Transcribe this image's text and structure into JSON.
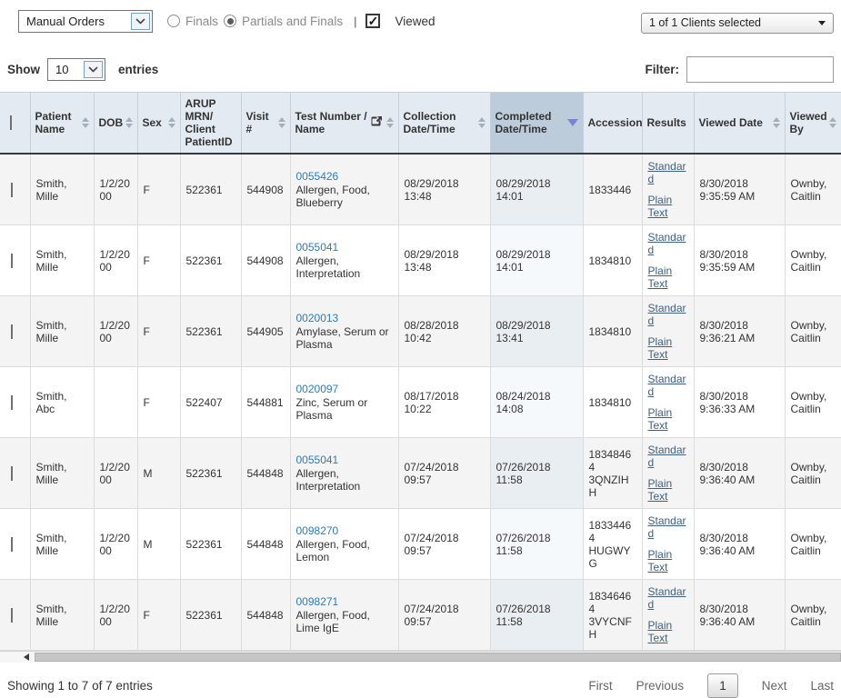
{
  "toolbar": {
    "order_type_value": "Manual Orders",
    "radio_finals_label": "Finals",
    "radio_partials_label": "Partials and Finals",
    "separator": "|",
    "viewed_checkbox_checked": "✓",
    "viewed_label": "Viewed",
    "clients_dropdown_value": "1 of 1 Clients selected"
  },
  "controls": {
    "show_label": "Show",
    "entries_per_page": "10",
    "entries_label": "entries",
    "filter_label": "Filter:",
    "filter_value": ""
  },
  "table": {
    "columns": [
      {
        "key": "cb",
        "label": "",
        "sortable": false
      },
      {
        "key": "patient",
        "label": "Patient Name",
        "sortable": true
      },
      {
        "key": "dob",
        "label": "DOB",
        "sortable": true
      },
      {
        "key": "sex",
        "label": "Sex",
        "sortable": true
      },
      {
        "key": "mrn",
        "label": "ARUP MRN/ Client PatientID",
        "sortable": false
      },
      {
        "key": "visit",
        "label": "Visit #",
        "sortable": true
      },
      {
        "key": "test",
        "label": "Test Number / Name",
        "sortable": true,
        "icon": "external-link-icon"
      },
      {
        "key": "collection",
        "label": "Collection Date/Time",
        "sortable": true
      },
      {
        "key": "completed",
        "label": "Completed Date/Time",
        "sortable": true,
        "sorted": "desc"
      },
      {
        "key": "accession",
        "label": "Accession",
        "sortable": false
      },
      {
        "key": "results",
        "label": "Results",
        "sortable": false
      },
      {
        "key": "viewed_date",
        "label": "Viewed Date",
        "sortable": true
      },
      {
        "key": "viewed_by",
        "label": "Viewed By",
        "sortable": true
      }
    ],
    "results_links": [
      "Standard",
      "Plain Text"
    ],
    "rows": [
      {
        "patient": "Smith, Mille",
        "dob": "1/2/2000",
        "sex": "F",
        "mrn": "522361",
        "visit": "544908",
        "test_number": "0055426",
        "test_name": "Allergen, Food, Blueberry",
        "collection": "08/29/2018 13:48",
        "completed": "08/29/2018 14:01",
        "accession": "1833446",
        "viewed_date": "8/30/2018 9:35:59 AM",
        "viewed_by": "Ownby, Caitlin"
      },
      {
        "patient": "Smith, Mille",
        "dob": "1/2/2000",
        "sex": "F",
        "mrn": "522361",
        "visit": "544908",
        "test_number": "0055041",
        "test_name": "Allergen, Interpretation",
        "collection": "08/29/2018 13:48",
        "completed": "08/29/2018 14:01",
        "accession": "1834810",
        "viewed_date": "8/30/2018 9:35:59 AM",
        "viewed_by": "Ownby, Caitlin"
      },
      {
        "patient": "Smith, Mille",
        "dob": "1/2/2000",
        "sex": "F",
        "mrn": "522361",
        "visit": "544905",
        "test_number": "0020013",
        "test_name": "Amylase, Serum or Plasma",
        "collection": "08/28/2018 10:42",
        "completed": "08/29/2018 13:41",
        "accession": "1834810",
        "viewed_date": "8/30/2018 9:36:21 AM",
        "viewed_by": "Ownby, Caitlin"
      },
      {
        "patient": "Smith, Abc",
        "dob": "",
        "sex": "F",
        "mrn": "522407",
        "visit": "544881",
        "test_number": "0020097",
        "test_name": "Zinc, Serum or Plasma",
        "collection": "08/17/2018 10:22",
        "completed": "08/24/2018 14:08",
        "accession": "1834810",
        "viewed_date": "8/30/2018 9:36:33 AM",
        "viewed_by": "Ownby, Caitlin"
      },
      {
        "patient": "Smith, Mille",
        "dob": "1/2/2000",
        "sex": "M",
        "mrn": "522361",
        "visit": "544848",
        "test_number": "0055041",
        "test_name": "Allergen, Interpretation",
        "collection": "07/24/2018 09:57",
        "completed": "07/26/2018 11:58",
        "accession": "18348464 3QNZIHH",
        "viewed_date": "8/30/2018 9:36:40 AM",
        "viewed_by": "Ownby, Caitlin"
      },
      {
        "patient": "Smith, Mille",
        "dob": "1/2/2000",
        "sex": "M",
        "mrn": "522361",
        "visit": "544848",
        "test_number": "0098270",
        "test_name": "Allergen, Food, Lemon",
        "collection": "07/24/2018 09:57",
        "completed": "07/26/2018 11:58",
        "accession": "18334464 HUGWYG",
        "viewed_date": "8/30/2018 9:36:40 AM",
        "viewed_by": "Ownby, Caitlin"
      },
      {
        "patient": "Smith, Mille",
        "dob": "1/2/2000",
        "sex": "F",
        "mrn": "522361",
        "visit": "544848",
        "test_number": "0098271",
        "test_name": "Allergen, Food, Lime IgE",
        "collection": "07/24/2018 09:57",
        "completed": "07/26/2018 11:58",
        "accession": "18346464 3VYCNFH",
        "viewed_date": "8/30/2018 9:36:40 AM",
        "viewed_by": "Ownby, Caitlin"
      }
    ]
  },
  "footer": {
    "showing_text": "Showing 1 to 7 of 7 entries",
    "pagination": {
      "first": "First",
      "previous": "Previous",
      "current_page": "1",
      "next": "Next",
      "last": "Last"
    }
  },
  "colors": {
    "header_bg": "#e3eaf1",
    "sorted_header_bg": "#bdccdb",
    "sorted_arrow": "#7583d9",
    "row_stripe": "#f4f4f4",
    "sorted_col_stripe": "#e9eef3",
    "test_link": "#2e7cb4",
    "result_link": "#3f6080",
    "header_underline": "#333c46"
  }
}
